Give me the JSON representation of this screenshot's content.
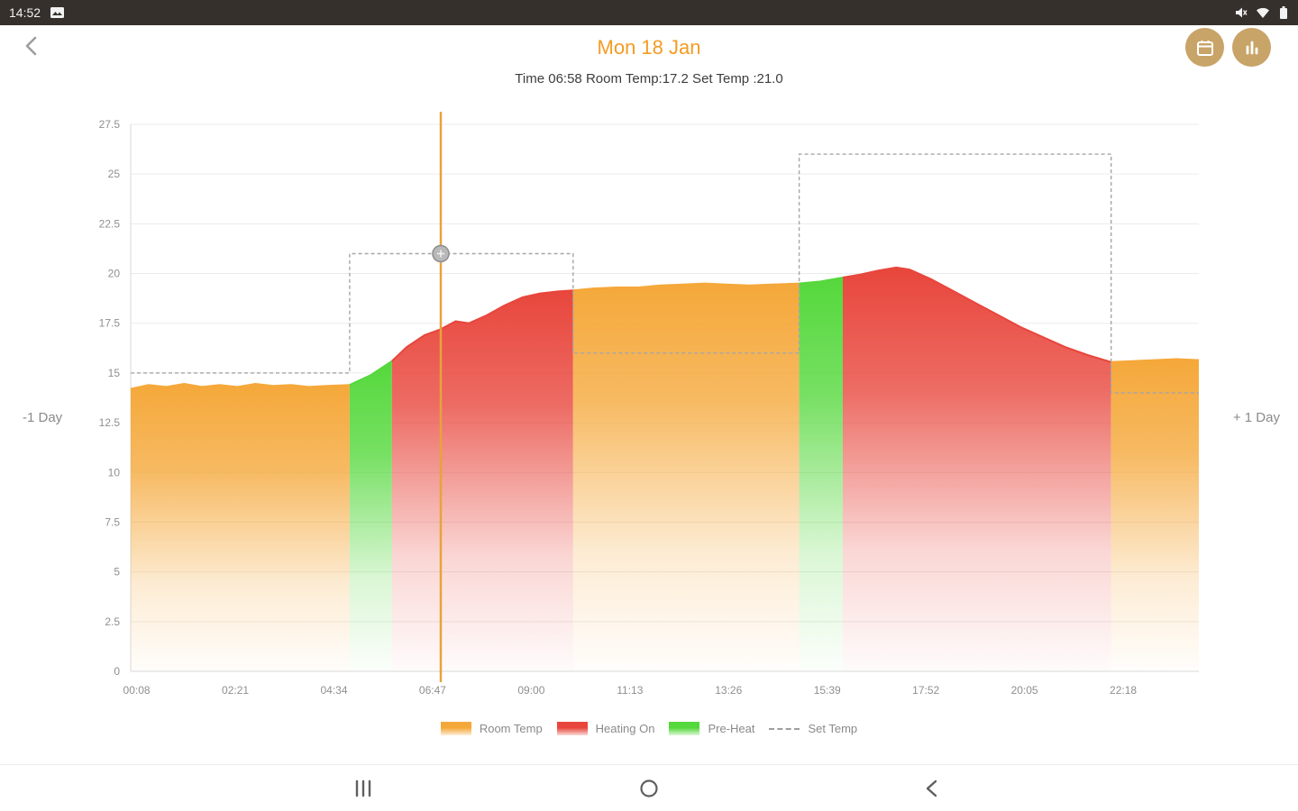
{
  "status_bar": {
    "time": "14:52"
  },
  "header": {
    "title": "Mon 18 Jan",
    "subtitle": "Time 06:58 Room Temp:17.2 Set Temp :21.0",
    "accent_color": "#f59b23"
  },
  "day_nav": {
    "prev_label": "-1 Day",
    "next_label": "+ 1 Day"
  },
  "legend": [
    {
      "label": "Room Temp",
      "color": "#f5a83a",
      "type": "area"
    },
    {
      "label": "Heating On",
      "color": "#e8463c",
      "type": "area"
    },
    {
      "label": "Pre-Heat",
      "color": "#55d83c",
      "type": "area"
    },
    {
      "label": "Set Temp",
      "color": "#9e9e9e",
      "type": "dashed-line"
    }
  ],
  "chart_data": {
    "type": "area",
    "title": "Room temperature, heating activity and set temperature over one day",
    "xlabel": "",
    "ylabel": "",
    "ylim": [
      0,
      27.5
    ],
    "xlim_hours": [
      0,
      24
    ],
    "grid": "horizontal",
    "legend_position": "bottom",
    "yticks": [
      0,
      2.5,
      5,
      7.5,
      10,
      12.5,
      15,
      17.5,
      20,
      22.5,
      25,
      27.5
    ],
    "xticks": [
      {
        "hour": 0.133,
        "label": "00:08"
      },
      {
        "hour": 2.35,
        "label": "02:21"
      },
      {
        "hour": 4.567,
        "label": "04:34"
      },
      {
        "hour": 6.783,
        "label": "06:47"
      },
      {
        "hour": 9.0,
        "label": "09:00"
      },
      {
        "hour": 11.217,
        "label": "11:13"
      },
      {
        "hour": 13.433,
        "label": "13:26"
      },
      {
        "hour": 15.65,
        "label": "15:39"
      },
      {
        "hour": 17.867,
        "label": "17:52"
      },
      {
        "hour": 20.083,
        "label": "20:05"
      },
      {
        "hour": 22.3,
        "label": "22:18"
      }
    ],
    "room_temp": [
      [
        0,
        14.2
      ],
      [
        0.4,
        14.4
      ],
      [
        0.8,
        14.3
      ],
      [
        1.2,
        14.45
      ],
      [
        1.6,
        14.3
      ],
      [
        2.0,
        14.4
      ],
      [
        2.4,
        14.3
      ],
      [
        2.8,
        14.45
      ],
      [
        3.2,
        14.35
      ],
      [
        3.6,
        14.4
      ],
      [
        4.0,
        14.3
      ],
      [
        4.4,
        14.35
      ],
      [
        4.92,
        14.4
      ],
      [
        5.4,
        14.9
      ],
      [
        5.87,
        15.6
      ],
      [
        6.2,
        16.3
      ],
      [
        6.6,
        16.9
      ],
      [
        6.97,
        17.2
      ],
      [
        7.3,
        17.6
      ],
      [
        7.6,
        17.5
      ],
      [
        8.0,
        17.9
      ],
      [
        8.4,
        18.4
      ],
      [
        8.8,
        18.8
      ],
      [
        9.2,
        19.0
      ],
      [
        9.6,
        19.1
      ],
      [
        9.94,
        19.15
      ],
      [
        10.4,
        19.25
      ],
      [
        10.9,
        19.3
      ],
      [
        11.4,
        19.3
      ],
      [
        11.9,
        19.4
      ],
      [
        12.4,
        19.45
      ],
      [
        12.9,
        19.5
      ],
      [
        13.4,
        19.45
      ],
      [
        13.9,
        19.4
      ],
      [
        14.4,
        19.45
      ],
      [
        15.02,
        19.5
      ],
      [
        15.5,
        19.6
      ],
      [
        16.0,
        19.8
      ],
      [
        16.4,
        19.95
      ],
      [
        16.8,
        20.15
      ],
      [
        17.2,
        20.3
      ],
      [
        17.5,
        20.2
      ],
      [
        18.0,
        19.7
      ],
      [
        18.5,
        19.1
      ],
      [
        19.0,
        18.5
      ],
      [
        19.5,
        17.9
      ],
      [
        20.0,
        17.3
      ],
      [
        20.5,
        16.8
      ],
      [
        21.0,
        16.3
      ],
      [
        21.5,
        15.9
      ],
      [
        22.03,
        15.55
      ],
      [
        22.5,
        15.6
      ],
      [
        23.0,
        15.65
      ],
      [
        23.5,
        15.7
      ],
      [
        24,
        15.65
      ]
    ],
    "mode_segments": [
      {
        "start": 0,
        "end": 4.92,
        "mode": "room"
      },
      {
        "start": 4.92,
        "end": 5.87,
        "mode": "preheat"
      },
      {
        "start": 5.87,
        "end": 9.94,
        "mode": "heat"
      },
      {
        "start": 9.94,
        "end": 15.02,
        "mode": "room"
      },
      {
        "start": 15.02,
        "end": 16.0,
        "mode": "preheat"
      },
      {
        "start": 16.0,
        "end": 22.03,
        "mode": "heat"
      },
      {
        "start": 22.03,
        "end": 24,
        "mode": "room"
      }
    ],
    "set_temp_steps": [
      {
        "start": 0,
        "end": 4.92,
        "value": 15
      },
      {
        "start": 4.92,
        "end": 9.94,
        "value": 21
      },
      {
        "start": 9.94,
        "end": 15.02,
        "value": 16
      },
      {
        "start": 15.02,
        "end": 22.03,
        "value": 26
      },
      {
        "start": 22.03,
        "end": 24,
        "value": 14
      }
    ],
    "cursor": {
      "hour": 6.967,
      "time_label": "06:58",
      "room_temp": 17.2,
      "set_temp": 21.0,
      "marker_value": 21
    },
    "colors": {
      "room": "#f5a83a",
      "heat": "#e8463c",
      "preheat": "#55d83c",
      "set": "#a6a6a6",
      "cursor": "#e7a33b"
    }
  }
}
